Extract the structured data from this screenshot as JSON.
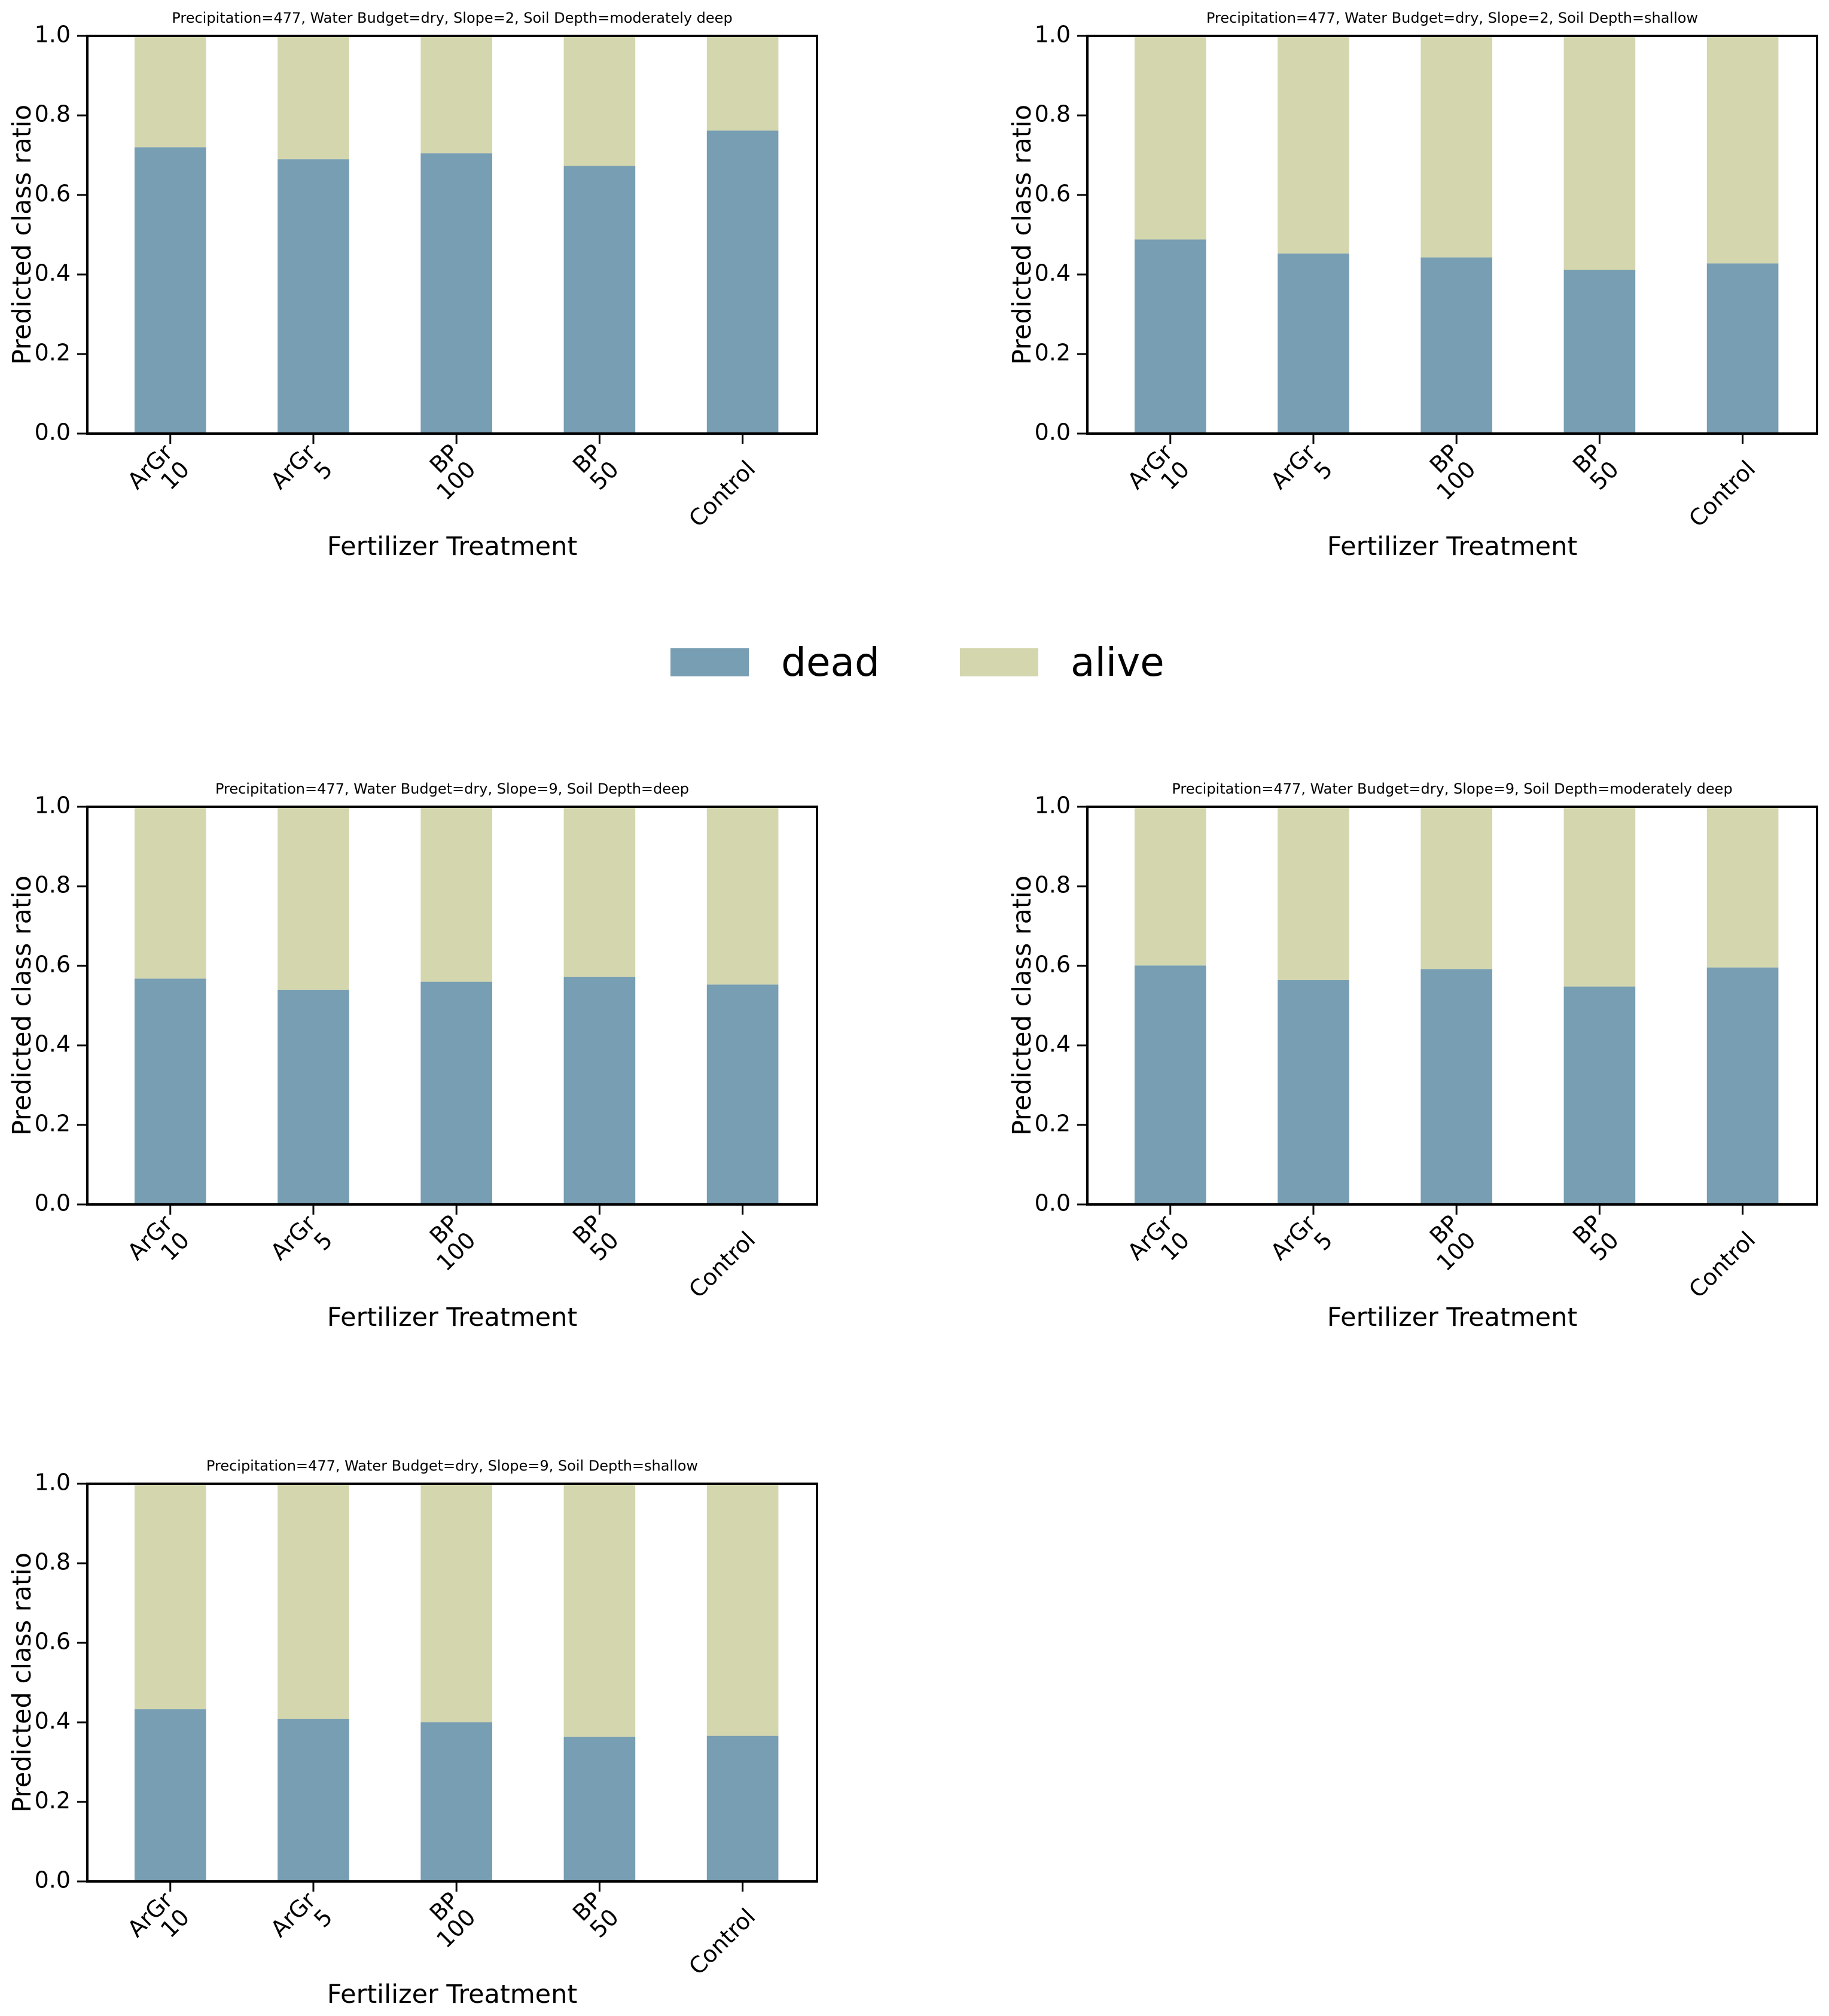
{
  "chart_data": [
    {
      "type": "stacked_bar",
      "title": "Precipitation=477, Water Budget=dry, Slope=2, Soil Depth=moderately deep",
      "xlabel": "Fertilizer Treatment",
      "ylabel": "Predicted class ratio",
      "categories": [
        [
          "ArGr",
          "10"
        ],
        [
          "ArGr",
          "5"
        ],
        [
          "BP",
          "100"
        ],
        [
          "BP",
          "50"
        ],
        [
          "Control"
        ]
      ],
      "series": [
        {
          "name": "dead",
          "color": "#779eb2",
          "values": [
            0.72,
            0.69,
            0.705,
            0.673,
            0.762
          ]
        },
        {
          "name": "alive",
          "color": "#d4d6ae",
          "values": [
            0.28,
            0.31,
            0.295,
            0.327,
            0.238
          ]
        }
      ],
      "ylim": [
        0,
        1
      ],
      "yticks": [
        {
          "value": 0,
          "label": "0.0"
        },
        0.2,
        0.4,
        0.6,
        0.8,
        {
          "value": 1,
          "label": "1.0"
        }
      ]
    },
    {
      "type": "stacked_bar",
      "title": "Precipitation=477, Water Budget=dry, Slope=2, Soil Depth=shallow",
      "xlabel": "Fertilizer Treatment",
      "ylabel": "Predicted class ratio",
      "categories": [
        [
          "ArGr",
          "10"
        ],
        [
          "ArGr",
          "5"
        ],
        [
          "BP",
          "100"
        ],
        [
          "BP",
          "50"
        ],
        [
          "Control"
        ]
      ],
      "series": [
        {
          "name": "dead",
          "color": "#779eb2",
          "values": [
            0.488,
            0.453,
            0.443,
            0.412,
            0.428
          ]
        },
        {
          "name": "alive",
          "color": "#d4d6ae",
          "values": [
            0.512,
            0.547,
            0.557,
            0.588,
            0.572
          ]
        }
      ],
      "ylim": [
        0,
        1
      ],
      "yticks": [
        {
          "value": 0,
          "label": "0.0"
        },
        0.2,
        0.4,
        0.6,
        0.8,
        {
          "value": 1,
          "label": "1.0"
        }
      ]
    },
    {
      "type": "stacked_bar",
      "title": "Precipitation=477, Water Budget=dry, Slope=9, Soil Depth=deep",
      "xlabel": "Fertilizer Treatment",
      "ylabel": "Predicted class ratio",
      "categories": [
        [
          "ArGr",
          "10"
        ],
        [
          "ArGr",
          "5"
        ],
        [
          "BP",
          "100"
        ],
        [
          "BP",
          "50"
        ],
        [
          "Control"
        ]
      ],
      "series": [
        {
          "name": "dead",
          "color": "#779eb2",
          "values": [
            0.568,
            0.54,
            0.56,
            0.572,
            0.553
          ]
        },
        {
          "name": "alive",
          "color": "#d4d6ae",
          "values": [
            0.432,
            0.46,
            0.44,
            0.428,
            0.447
          ]
        }
      ],
      "ylim": [
        0,
        1
      ],
      "yticks": [
        {
          "value": 0,
          "label": "0.0"
        },
        0.2,
        0.4,
        0.6,
        0.8,
        {
          "value": 1,
          "label": "1.0"
        }
      ]
    },
    {
      "type": "stacked_bar",
      "title": "Precipitation=477, Water Budget=dry, Slope=9, Soil Depth=moderately deep",
      "xlabel": "Fertilizer Treatment",
      "ylabel": "Predicted class ratio",
      "categories": [
        [
          "ArGr",
          "10"
        ],
        [
          "ArGr",
          "5"
        ],
        [
          "BP",
          "100"
        ],
        [
          "BP",
          "50"
        ],
        [
          "Control"
        ]
      ],
      "series": [
        {
          "name": "dead",
          "color": "#779eb2",
          "values": [
            0.601,
            0.564,
            0.592,
            0.548,
            0.596
          ]
        },
        {
          "name": "alive",
          "color": "#d4d6ae",
          "values": [
            0.399,
            0.436,
            0.408,
            0.452,
            0.404
          ]
        }
      ],
      "ylim": [
        0,
        1
      ],
      "yticks": [
        {
          "value": 0,
          "label": "0.0"
        },
        0.2,
        0.4,
        0.6,
        0.8,
        {
          "value": 1,
          "label": "1.0"
        }
      ]
    },
    {
      "type": "stacked_bar",
      "title": "Precipitation=477, Water Budget=dry, Slope=9, Soil Depth=shallow",
      "xlabel": "Fertilizer Treatment",
      "ylabel": "Predicted class ratio",
      "categories": [
        [
          "ArGr",
          "10"
        ],
        [
          "ArGr",
          "5"
        ],
        [
          "BP",
          "100"
        ],
        [
          "BP",
          "50"
        ],
        [
          "Control"
        ]
      ],
      "series": [
        {
          "name": "dead",
          "color": "#779eb2",
          "values": [
            0.433,
            0.409,
            0.4,
            0.364,
            0.366
          ]
        },
        {
          "name": "alive",
          "color": "#d4d6ae",
          "values": [
            0.567,
            0.591,
            0.6,
            0.636,
            0.634
          ]
        }
      ],
      "ylim": [
        0,
        1
      ],
      "yticks": [
        {
          "value": 0,
          "label": "0.0"
        },
        0.2,
        0.4,
        0.6,
        0.8,
        {
          "value": 1,
          "label": "1.0"
        }
      ]
    }
  ]
}
